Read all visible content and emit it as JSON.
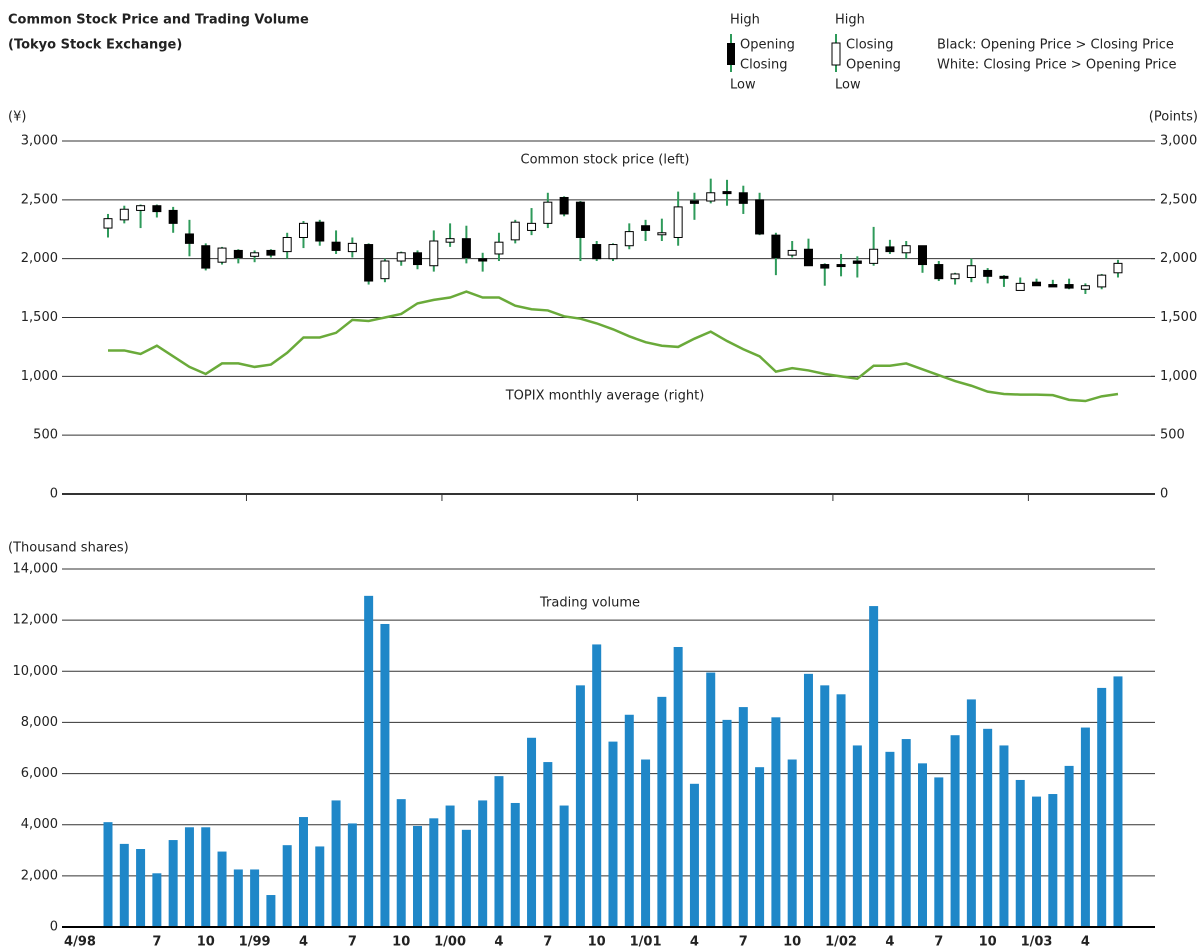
{
  "legend": {
    "black": [
      "High",
      "Opening",
      "Closing",
      "Low"
    ],
    "white": [
      "High",
      "Closing",
      "Opening",
      "Low"
    ],
    "notes": [
      "Black: Opening Price > Closing Price",
      "White: Closing Price > Opening Price"
    ]
  },
  "chart_data": [
    {
      "type": "candlestick",
      "title": "Common Stock Price and Trading Volume",
      "subtitle": "(Tokyo Stock Exchange)",
      "label": "Common stock price (left)",
      "ylabel": "(¥)",
      "y2label": "(Points)",
      "open": [
        2260,
        2330,
        2410,
        2450,
        2410,
        2210,
        2110,
        1970,
        2070,
        2020,
        2070,
        2060,
        2180,
        2310,
        2140,
        2060,
        2120,
        1830,
        1980,
        2050,
        1940,
        2140,
        2170,
        2000,
        2040,
        2160,
        2240,
        2300,
        2520,
        2480,
        2120,
        2000,
        2110,
        2280,
        2210,
        2180,
        2490,
        2490,
        2570,
        2560,
        2500,
        2200,
        2030,
        2080,
        1950,
        1950,
        1980,
        1960,
        2100,
        2050,
        2110,
        1950,
        1830,
        1840,
        1900,
        1850,
        1730,
        1800,
        1780,
        1780,
        1740,
        1760,
        1880
      ],
      "high": [
        2380,
        2450,
        2460,
        2460,
        2440,
        2330,
        2130,
        2100,
        2080,
        2070,
        2080,
        2220,
        2320,
        2330,
        2240,
        2180,
        2130,
        2000,
        2060,
        2070,
        2240,
        2300,
        2280,
        2050,
        2220,
        2330,
        2430,
        2560,
        2530,
        2490,
        2150,
        2130,
        2300,
        2330,
        2340,
        2570,
        2560,
        2680,
        2670,
        2620,
        2560,
        2220,
        2150,
        2170,
        1960,
        2040,
        2020,
        2270,
        2160,
        2150,
        2110,
        1980,
        1880,
        2000,
        1920,
        1860,
        1840,
        1830,
        1820,
        1830,
        1790,
        1870,
        1990
      ],
      "low": [
        2180,
        2300,
        2260,
        2350,
        2220,
        2020,
        1900,
        1950,
        1960,
        1970,
        2010,
        2000,
        2090,
        2110,
        2040,
        2010,
        1780,
        1800,
        1940,
        1910,
        1890,
        2100,
        1960,
        1890,
        1980,
        2130,
        2200,
        2260,
        2360,
        1980,
        1980,
        1980,
        2080,
        2150,
        2150,
        2110,
        2330,
        2470,
        2450,
        2380,
        2200,
        1860,
        2010,
        1940,
        1770,
        1850,
        1840,
        1940,
        2040,
        2000,
        1880,
        1810,
        1780,
        1800,
        1790,
        1760,
        1730,
        1770,
        1760,
        1740,
        1700,
        1740,
        1840
      ],
      "close": [
        2340,
        2420,
        2450,
        2400,
        2300,
        2130,
        1920,
        2090,
        2010,
        2050,
        2030,
        2180,
        2300,
        2150,
        2070,
        2130,
        1810,
        1980,
        2050,
        1950,
        2150,
        2170,
        2010,
        1980,
        2140,
        2310,
        2300,
        2480,
        2380,
        2180,
        2000,
        2120,
        2230,
        2240,
        2220,
        2440,
        2470,
        2560,
        2560,
        2470,
        2210,
        2010,
        2070,
        1940,
        1920,
        1940,
        1960,
        2080,
        2060,
        2110,
        1950,
        1830,
        1870,
        1940,
        1850,
        1840,
        1790,
        1770,
        1760,
        1750,
        1770,
        1860,
        1960
      ],
      "up_color": "#ffffff",
      "down_color": "#000000",
      "wick_color": "#2e9a5a",
      "series": [
        {
          "name": "TOPIX monthly average (right)",
          "color": "#6aaa3a",
          "axis": "y2",
          "values": [
            1220,
            1220,
            1190,
            1260,
            1170,
            1080,
            1020,
            1110,
            1110,
            1080,
            1100,
            1200,
            1330,
            1330,
            1370,
            1480,
            1470,
            1500,
            1530,
            1620,
            1650,
            1670,
            1720,
            1670,
            1670,
            1600,
            1570,
            1560,
            1510,
            1490,
            1450,
            1400,
            1340,
            1290,
            1260,
            1250,
            1320,
            1380,
            1300,
            1230,
            1170,
            1040,
            1070,
            1050,
            1020,
            1000,
            980,
            1090,
            1090,
            1110,
            1060,
            1010,
            960,
            920,
            870,
            850,
            845,
            845,
            840,
            800,
            790,
            830,
            850
          ]
        }
      ],
      "ylim": [
        0,
        3000
      ],
      "yticks": [
        0,
        500,
        {
          "value": 1000,
          "label": "1,000"
        },
        {
          "value": 1500,
          "label": "1,500"
        },
        {
          "value": 2000,
          "label": "2,000"
        },
        {
          "value": 2500,
          "label": "2,500"
        },
        {
          "value": 3000,
          "label": "3,000"
        }
      ],
      "y2lim": [
        0,
        3000
      ],
      "y2ticks": [
        0,
        500,
        {
          "value": 1000,
          "label": "1,000"
        },
        {
          "value": 1500,
          "label": "1,500"
        },
        {
          "value": 2000,
          "label": "2,000"
        },
        {
          "value": 2500,
          "label": "2,500"
        },
        {
          "value": 3000,
          "label": "3,000"
        }
      ],
      "grid": true
    },
    {
      "type": "bar",
      "title": "Trading volume",
      "ylabel": "(Thousand shares)",
      "color": "#1f87c8",
      "categories": [
        "4/98",
        null,
        null,
        "7",
        null,
        null,
        "10",
        null,
        null,
        "1/99",
        null,
        null,
        "4",
        null,
        null,
        "7",
        null,
        null,
        "10",
        null,
        null,
        "1/00",
        null,
        null,
        "4",
        null,
        null,
        "7",
        null,
        null,
        "10",
        null,
        null,
        "1/01",
        null,
        null,
        "4",
        null,
        null,
        "7",
        null,
        null,
        "10",
        null,
        null,
        "1/02",
        null,
        null,
        "4",
        null,
        null,
        "7",
        null,
        null,
        "10",
        null,
        null,
        "1/03",
        null,
        null,
        "4",
        null,
        null
      ],
      "values": [
        4100,
        3250,
        3050,
        2100,
        3400,
        3900,
        3900,
        2950,
        2250,
        2250,
        1250,
        3200,
        4300,
        3150,
        4950,
        4050,
        12950,
        11850,
        5000,
        3950,
        4250,
        4750,
        3800,
        4950,
        5900,
        4850,
        7400,
        6450,
        4750,
        9450,
        11050,
        7250,
        8300,
        6550,
        9000,
        10950,
        5600,
        9950,
        8100,
        8600,
        6250,
        8200,
        6550,
        9900,
        9450,
        9100,
        7100,
        12550,
        6850,
        7350,
        6400,
        5850,
        7500,
        8900,
        7750,
        7100,
        5750,
        5100,
        5200,
        6300,
        7800,
        9350,
        9800
      ],
      "ylim": [
        0,
        14000
      ],
      "yticks": [
        0,
        {
          "value": 2000,
          "label": "2,000"
        },
        {
          "value": 4000,
          "label": "4,000"
        },
        {
          "value": 6000,
          "label": "6,000"
        },
        {
          "value": 8000,
          "label": "8,000"
        },
        {
          "value": 10000,
          "label": "10,000"
        },
        {
          "value": 12000,
          "label": "12,000"
        },
        {
          "value": 14000,
          "label": "14,000"
        }
      ],
      "grid": true
    }
  ]
}
